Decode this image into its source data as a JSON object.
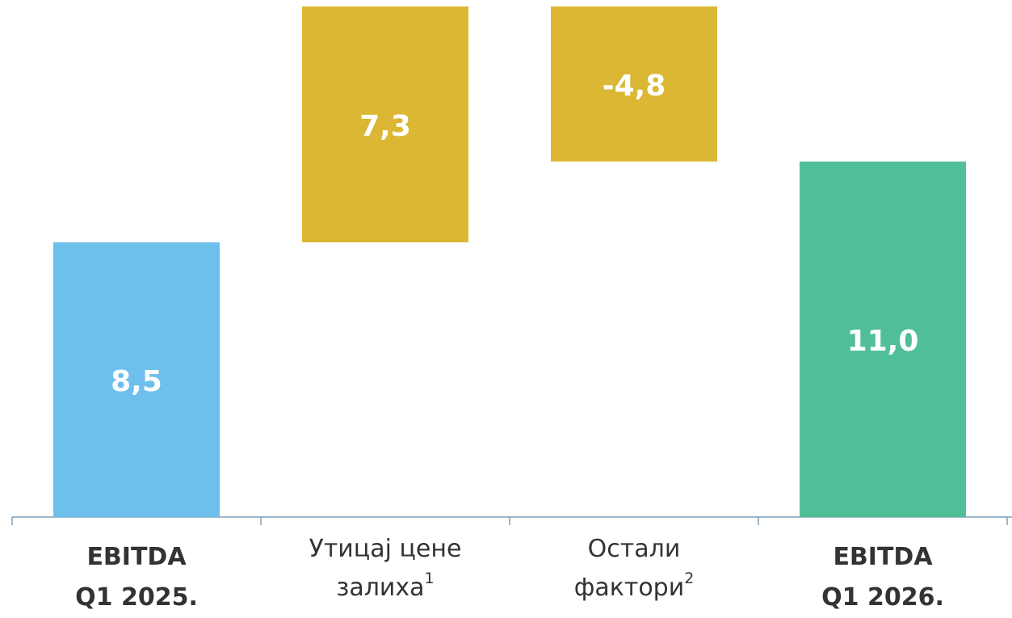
{
  "chart_data": {
    "type": "waterfall",
    "categories": [
      {
        "lines": [
          "EBITDA",
          "Q1 2025."
        ]
      },
      {
        "lines": [
          "Утицај цене",
          "залиха"
        ],
        "note": "1"
      },
      {
        "lines": [
          "Остали",
          "фактори"
        ],
        "note": "2"
      },
      {
        "lines": [
          "EBITDA",
          "Q1 2026."
        ]
      }
    ],
    "values": [
      8.5,
      7.3,
      -4.8,
      11.0
    ],
    "value_labels": [
      "8,5",
      "7,3",
      "-4,8",
      "11,0"
    ],
    "bar_kinds": [
      "total",
      "delta",
      "delta",
      "total"
    ],
    "colors": [
      "#6dbfec",
      "#dbb734",
      "#dbb734",
      "#50bf98"
    ],
    "ylim": [
      0,
      16
    ]
  }
}
